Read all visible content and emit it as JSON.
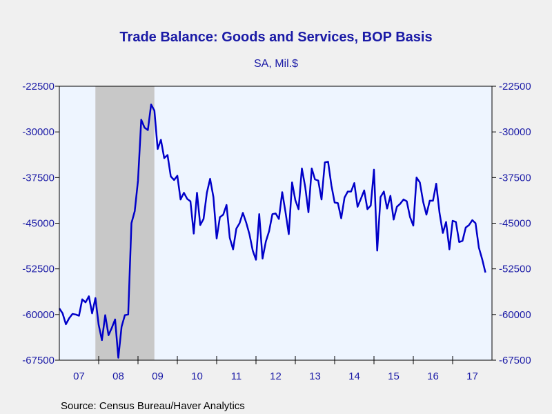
{
  "chart_data": {
    "type": "line",
    "title": "Trade Balance: Goods and Services, BOP Basis",
    "subtitle": "SA, Mil.$",
    "source": "Source:  Census Bureau/Haver Analytics",
    "x_tick_labels": [
      "07",
      "08",
      "09",
      "10",
      "11",
      "12",
      "13",
      "14",
      "15",
      "16",
      "17"
    ],
    "x_range": [
      2007.0,
      2018.0
    ],
    "y_ticks": [
      -22500,
      -30000,
      -37500,
      -45000,
      -52500,
      -60000,
      -67500
    ],
    "y_tick_labels": [
      "-22500",
      "-30000",
      "-37500",
      "-45000",
      "-52500",
      "-60000",
      "-67500"
    ],
    "ylim": [
      -67500,
      -22500
    ],
    "recession": {
      "start": "2007-12",
      "end": "2009-06"
    },
    "grid": false,
    "colors": {
      "line": "#0000c8",
      "text": "#1a1aa6",
      "plot_background": "#eef5ff",
      "recession_shade": "#c8c8c8",
      "page_background": "#f0f0f0"
    },
    "series": [
      {
        "start": "2007-01",
        "frequency": "monthly",
        "values": [
          -59000,
          -59800,
          -61600,
          -60600,
          -59900,
          -60000,
          -60200,
          -57500,
          -58000,
          -57000,
          -59800,
          -57300,
          -61700,
          -64200,
          -60100,
          -63400,
          -62200,
          -60800,
          -67100,
          -62000,
          -60100,
          -60000,
          -45000,
          -43000,
          -38000,
          -28000,
          -29300,
          -29700,
          -25500,
          -26500,
          -32800,
          -31300,
          -34300,
          -33800,
          -37300,
          -37900,
          -37200,
          -41100,
          -40000,
          -41000,
          -41400,
          -46700,
          -40000,
          -45300,
          -44300,
          -40000,
          -37700,
          -40700,
          -47500,
          -44000,
          -43600,
          -42000,
          -47400,
          -49300,
          -45900,
          -45000,
          -43300,
          -44900,
          -46800,
          -49500,
          -51000,
          -43500,
          -50800,
          -48000,
          -46300,
          -43500,
          -43400,
          -44300,
          -39900,
          -43200,
          -46800,
          -38300,
          -41200,
          -42700,
          -36000,
          -39000,
          -43200,
          -36000,
          -37800,
          -38000,
          -41100,
          -35000,
          -34900,
          -38800,
          -41600,
          -41700,
          -44200,
          -40800,
          -39800,
          -39800,
          -38400,
          -42300,
          -41000,
          -39600,
          -42700,
          -42100,
          -36200,
          -49500,
          -40700,
          -39800,
          -42600,
          -40500,
          -44400,
          -42300,
          -41800,
          -41100,
          -41400,
          -44000,
          -45400,
          -37500,
          -38300,
          -41500,
          -43600,
          -41300,
          -41300,
          -38500,
          -43300,
          -46600,
          -44800,
          -49300,
          -44600,
          -44800,
          -48100,
          -47900,
          -45700,
          -45300,
          -44500,
          -45000,
          -49000,
          -50900,
          -53100
        ]
      }
    ]
  }
}
